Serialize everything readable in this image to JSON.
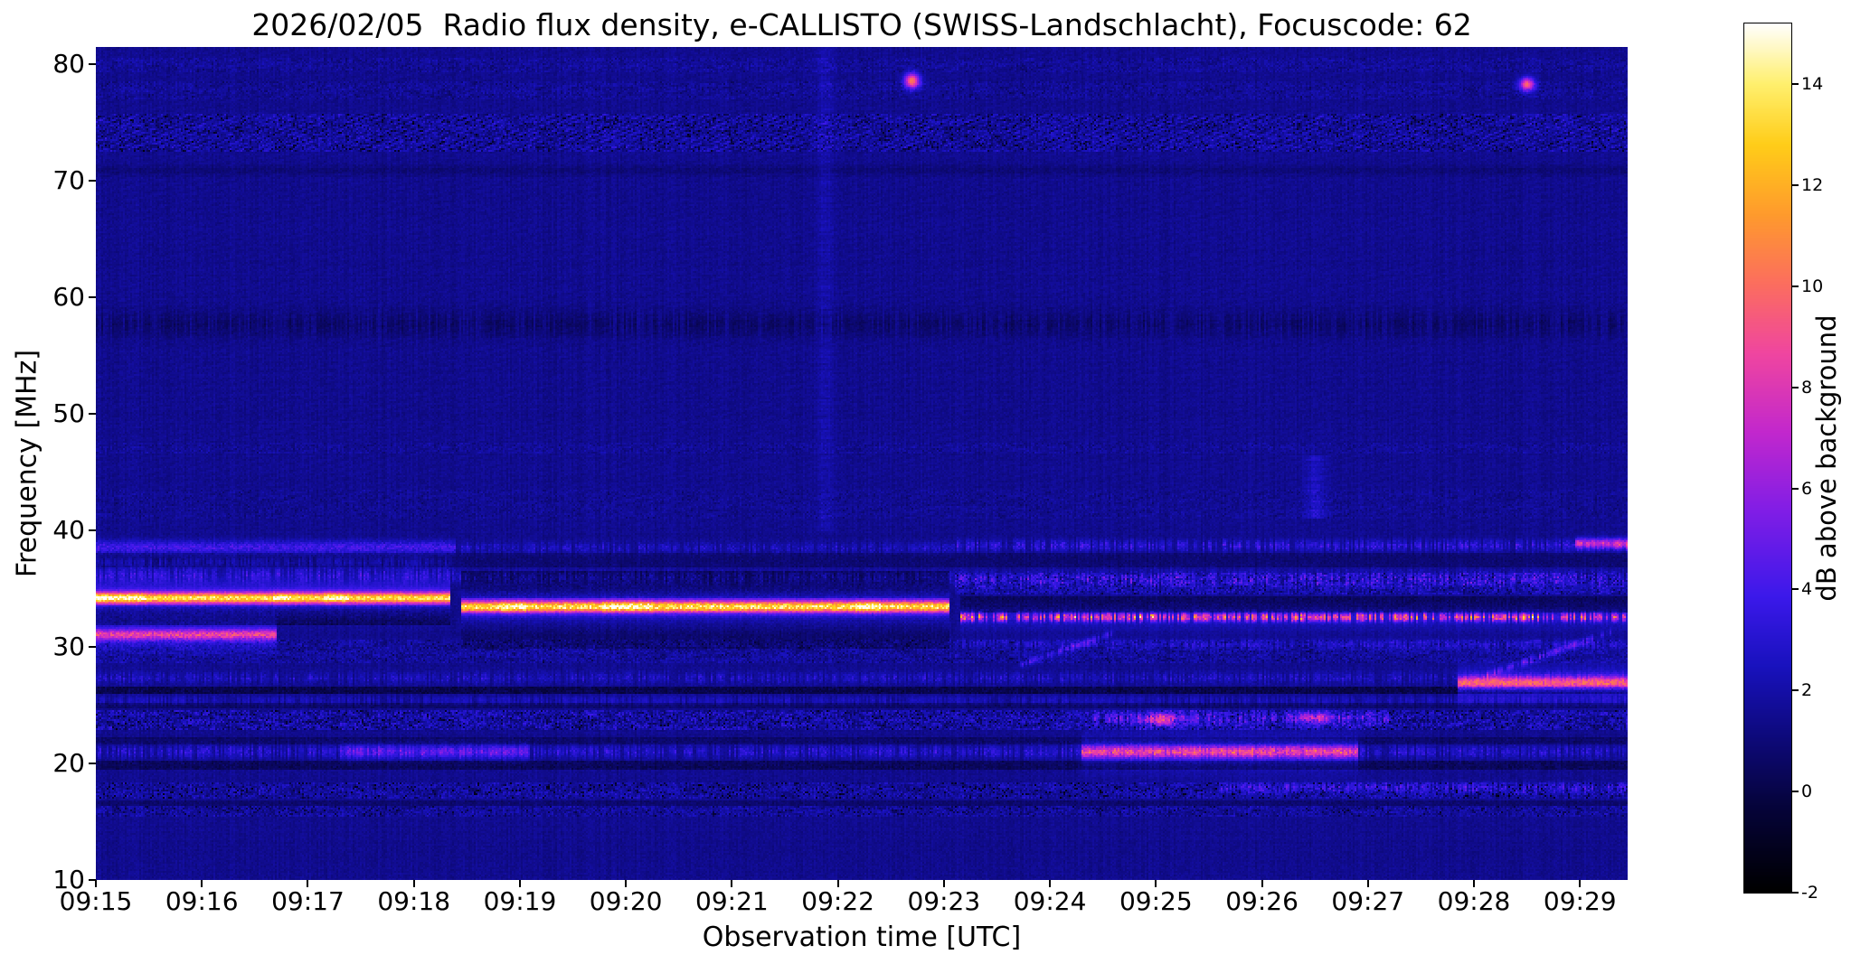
{
  "chart_data": {
    "type": "heatmap",
    "title": "2026/02/05  Radio flux density, e-CALLISTO (SWISS-Landschlacht), Focuscode: 62",
    "xlabel": "Observation time [UTC]",
    "ylabel": "Frequency [MHz]",
    "x_ticks": [
      "09:15",
      "09:16",
      "09:17",
      "09:18",
      "09:19",
      "09:20",
      "09:21",
      "09:22",
      "09:23",
      "09:24",
      "09:25",
      "09:26",
      "09:27",
      "09:28",
      "09:29"
    ],
    "x_range_minutes": [
      0,
      14.45
    ],
    "y_ticks": [
      10,
      20,
      30,
      40,
      50,
      60,
      70,
      80
    ],
    "y_range": [
      10,
      81.5
    ],
    "background_db": 1.45,
    "colorbar": {
      "label": "dB above background",
      "ticks": [
        -2,
        0,
        2,
        4,
        6,
        8,
        10,
        12,
        14
      ],
      "vmin": -2,
      "vmax": 15.2
    },
    "colormap_stops": [
      {
        "u": 0.0,
        "hex": "#000000"
      },
      {
        "u": 0.1,
        "hex": "#06043c"
      },
      {
        "u": 0.18,
        "hex": "#0e0a7d"
      },
      {
        "u": 0.26,
        "hex": "#1912be"
      },
      {
        "u": 0.34,
        "hex": "#3c19eb"
      },
      {
        "u": 0.44,
        "hex": "#821ee6"
      },
      {
        "u": 0.53,
        "hex": "#c328cd"
      },
      {
        "u": 0.62,
        "hex": "#f046a0"
      },
      {
        "u": 0.7,
        "hex": "#fc6e5f"
      },
      {
        "u": 0.78,
        "hex": "#ff9b2d"
      },
      {
        "u": 0.86,
        "hex": "#ffcd19"
      },
      {
        "u": 0.93,
        "hex": "#fff06e"
      },
      {
        "u": 1.0,
        "hex": "#ffffff"
      }
    ],
    "features": [
      {
        "kind": "noiseband",
        "f0": 79.4,
        "f1": 80.6,
        "t0": 0,
        "t1": 14.45,
        "amp": 0.6,
        "dark": 0.4
      },
      {
        "kind": "noiseband",
        "f0": 77.0,
        "f1": 78.6,
        "t0": 0,
        "t1": 14.45,
        "amp": 0.55,
        "dark": 0.6
      },
      {
        "kind": "dot",
        "t": 7.7,
        "f": 78.6,
        "amp": 9,
        "fw": 0.45,
        "tw": 0.05
      },
      {
        "kind": "dot",
        "t": 13.5,
        "f": 78.3,
        "amp": 8,
        "fw": 0.4,
        "tw": 0.05
      },
      {
        "kind": "noiseband",
        "f0": 72.5,
        "f1": 75.8,
        "t0": 0,
        "t1": 14.45,
        "amp": 1.0,
        "dark": 1.8,
        "herring": true
      },
      {
        "kind": "hline",
        "f": 70.9,
        "t0": 0,
        "t1": 14.45,
        "amp": -0.5,
        "fw": 0.3
      },
      {
        "kind": "hline",
        "f": 57.7,
        "t0": 0,
        "t1": 14.45,
        "amp": -0.8,
        "fw": 0.8,
        "dotted": true
      },
      {
        "kind": "noiseband",
        "f0": 46.6,
        "f1": 47.6,
        "t0": 0,
        "t1": 14.45,
        "amp": 0.5,
        "dark": 0.4
      },
      {
        "kind": "noiseband",
        "f0": 41.0,
        "f1": 43.5,
        "t0": 0,
        "t1": 14.45,
        "amp": 0.4,
        "dark": 0.5
      },
      {
        "kind": "vline",
        "t": 6.88,
        "f0": 40,
        "f1": 81.5,
        "amp": 0.9,
        "tw": 0.05
      },
      {
        "kind": "vline",
        "t": 11.5,
        "f0": 41,
        "f1": 46.5,
        "amp": 1.5,
        "tw": 0.07
      },
      {
        "kind": "hline",
        "f": 38.55,
        "t0": 0,
        "t1": 3.4,
        "amp": 3.2,
        "fw": 0.4,
        "speckle": 0.5
      },
      {
        "kind": "hline",
        "f": 38.5,
        "t0": 3.4,
        "t1": 8.1,
        "amp": 1.7,
        "fw": 0.35,
        "speckle": 0.7,
        "dotted": true
      },
      {
        "kind": "hline",
        "f": 38.7,
        "t0": 8.1,
        "t1": 14.45,
        "amp": 2.6,
        "fw": 0.35,
        "speckle": 0.6,
        "dotted": true
      },
      {
        "kind": "hline",
        "f": 38.9,
        "t0": 13.95,
        "t1": 14.45,
        "amp": 6.0,
        "fw": 0.3,
        "speckle": 0.3
      },
      {
        "kind": "hline",
        "f": 37.3,
        "t0": 0,
        "t1": 3.4,
        "amp": 1.2,
        "fw": 0.3,
        "dotted": true
      },
      {
        "kind": "dark",
        "f0": 36.8,
        "f1": 38.0,
        "t0": 0,
        "t1": 14.45,
        "amp": -0.8
      },
      {
        "kind": "hline",
        "f": 36.2,
        "t0": 0,
        "t1": 3.4,
        "amp": 2.2,
        "fw": 0.45,
        "speckle": 0.6,
        "dotted": true
      },
      {
        "kind": "hline",
        "f": 36.0,
        "t0": 3.4,
        "t1": 8.1,
        "amp": 1.5,
        "fw": 0.4,
        "speckle": 0.7,
        "dotted": true
      },
      {
        "kind": "hline",
        "f": 35.8,
        "t0": 8.1,
        "t1": 14.45,
        "amp": 2.8,
        "fw": 0.5,
        "speckle": 0.8,
        "dotted": true
      },
      {
        "kind": "noiseband",
        "f0": 34.5,
        "f1": 36.4,
        "t0": 8.1,
        "t1": 14.45,
        "amp": 1.2,
        "dark": 1.2
      },
      {
        "kind": "hline",
        "f": 34.2,
        "t0": 0,
        "t1": 3.35,
        "amp": 11.0,
        "fw": 0.33,
        "speckle": 0.25,
        "glow": 2.4
      },
      {
        "kind": "dark",
        "f0": 31.9,
        "f1": 33.6,
        "t0": 0,
        "t1": 3.35,
        "amp": -1.6
      },
      {
        "kind": "hline",
        "f": 33.45,
        "t0": 3.45,
        "t1": 8.05,
        "amp": 11.5,
        "fw": 0.34,
        "speckle": 0.3,
        "glow": 2.4
      },
      {
        "kind": "dark",
        "f0": 34.2,
        "f1": 36.5,
        "t0": 3.45,
        "t1": 8.05,
        "amp": -1.5
      },
      {
        "kind": "dark",
        "f0": 29.9,
        "f1": 33.0,
        "t0": 3.45,
        "t1": 8.05,
        "amp": -1.0
      },
      {
        "kind": "hline",
        "f": 32.55,
        "t0": 8.15,
        "t1": 14.45,
        "amp": 8.5,
        "fw": 0.25,
        "speckle": 0.5,
        "dotted": true,
        "glow": 1.0
      },
      {
        "kind": "dark",
        "f0": 32.95,
        "f1": 34.3,
        "t0": 8.15,
        "t1": 14.45,
        "amp": -1.4
      },
      {
        "kind": "hline",
        "f": 31.05,
        "t0": 0,
        "t1": 1.7,
        "amp": 7.0,
        "fw": 0.32,
        "speckle": 0.4,
        "glow": 1.5
      },
      {
        "kind": "noiseband",
        "f0": 28.6,
        "f1": 30.6,
        "t0": 0,
        "t1": 14.45,
        "amp": 0.8,
        "dark": 0.8
      },
      {
        "kind": "hline",
        "f": 30.2,
        "t0": 8.15,
        "t1": 14.45,
        "amp": 1.1,
        "fw": 0.3,
        "dotted": true
      },
      {
        "kind": "drift",
        "t0": 8.7,
        "t1": 9.6,
        "f0": 28.4,
        "f1": 31.2,
        "amp": 2.2,
        "fw": 0.22,
        "dotted": true
      },
      {
        "kind": "drift",
        "t0": 13.1,
        "t1": 14.3,
        "f0": 27.5,
        "f1": 31.3,
        "amp": 2.4,
        "fw": 0.22,
        "dotted": true
      },
      {
        "kind": "hline",
        "f": 27.35,
        "t0": 0,
        "t1": 14.45,
        "amp": 1.8,
        "fw": 0.35,
        "speckle": 0.7,
        "dotted": true
      },
      {
        "kind": "hline",
        "f": 26.9,
        "t0": 12.85,
        "t1": 14.45,
        "amp": 7.5,
        "fw": 0.35,
        "speckle": 0.3,
        "glow": 1.5
      },
      {
        "kind": "dark",
        "f0": 25.9,
        "f1": 26.6,
        "t0": 0,
        "t1": 14.45,
        "amp": -1.8
      },
      {
        "kind": "hline",
        "f": 25.4,
        "t0": 0,
        "t1": 14.45,
        "amp": 1.0,
        "fw": 0.3,
        "dotted": true
      },
      {
        "kind": "dark",
        "f0": 24.8,
        "f1": 25.15,
        "t0": 0,
        "t1": 14.45,
        "amp": -1.1
      },
      {
        "kind": "noiseband",
        "f0": 22.9,
        "f1": 24.6,
        "t0": 0,
        "t1": 14.45,
        "amp": 1.5,
        "dark": 1.6
      },
      {
        "kind": "hline",
        "f": 23.9,
        "t0": 9.4,
        "t1": 12.2,
        "amp": 2.3,
        "fw": 0.4,
        "dotted": true
      },
      {
        "kind": "dot",
        "t": 10.05,
        "f": 23.8,
        "amp": 4.5,
        "fw": 0.4,
        "tw": 0.12
      },
      {
        "kind": "dot",
        "t": 11.5,
        "f": 23.9,
        "amp": 4.0,
        "fw": 0.35,
        "tw": 0.1
      },
      {
        "kind": "hline",
        "f": 21.0,
        "t0": 0,
        "t1": 14.45,
        "amp": 2.2,
        "fw": 0.4,
        "speckle": 0.6,
        "dotted": true
      },
      {
        "kind": "hline",
        "f": 21.0,
        "t0": 2.3,
        "t1": 4.1,
        "amp": 2.5,
        "fw": 0.45,
        "speckle": 0.4
      },
      {
        "kind": "hline",
        "f": 21.0,
        "t0": 9.3,
        "t1": 11.9,
        "amp": 6.0,
        "fw": 0.38,
        "speckle": 0.45,
        "glow": 1.2
      },
      {
        "kind": "dark",
        "f0": 19.4,
        "f1": 20.2,
        "t0": 0,
        "t1": 14.45,
        "amp": -1.3
      },
      {
        "kind": "dark",
        "f0": 21.7,
        "f1": 22.3,
        "t0": 0,
        "t1": 14.45,
        "amp": -1.0
      },
      {
        "kind": "noiseband",
        "f0": 17.0,
        "f1": 18.3,
        "t0": 0,
        "t1": 14.45,
        "amp": 1.1,
        "dark": 2.2
      },
      {
        "kind": "hline",
        "f": 17.9,
        "t0": 10.6,
        "t1": 14.45,
        "amp": 2.0,
        "fw": 0.3,
        "dotted": true
      },
      {
        "kind": "dark",
        "f0": 16.4,
        "f1": 16.9,
        "t0": 0,
        "t1": 14.45,
        "amp": -0.8
      },
      {
        "kind": "noiseband",
        "f0": 15.4,
        "f1": 16.3,
        "t0": 0,
        "t1": 14.45,
        "amp": 0.9,
        "dark": 1.4
      }
    ]
  }
}
